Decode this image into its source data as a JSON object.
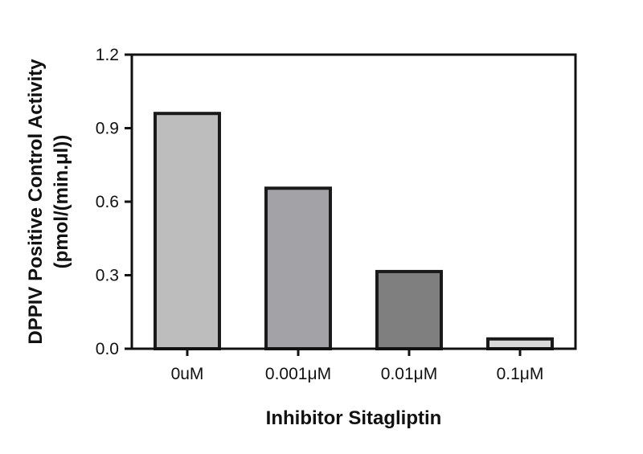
{
  "chart_data": {
    "type": "bar",
    "title": "",
    "categories": [
      "0uM",
      "0.001μM",
      "0.01μM",
      "0.1μM"
    ],
    "values": [
      0.96,
      0.655,
      0.315,
      0.04
    ],
    "bar_colors": [
      "#bdbdbd",
      "#a2a2a7",
      "#7f7f7f",
      "#d9d9d9"
    ],
    "bar_outline_color": "#1a1a1a",
    "xlabel": "Inhibitor Sitagliptin",
    "ylabel_line1": "DPPIV Positive Control Activity",
    "ylabel_line2": "(pmol/(min.μl))",
    "ylim": [
      0,
      1.2
    ],
    "yticks": [
      "0.0",
      "0.3",
      "0.6",
      "0.9",
      "1.2"
    ],
    "grid": false,
    "legend": "none"
  }
}
